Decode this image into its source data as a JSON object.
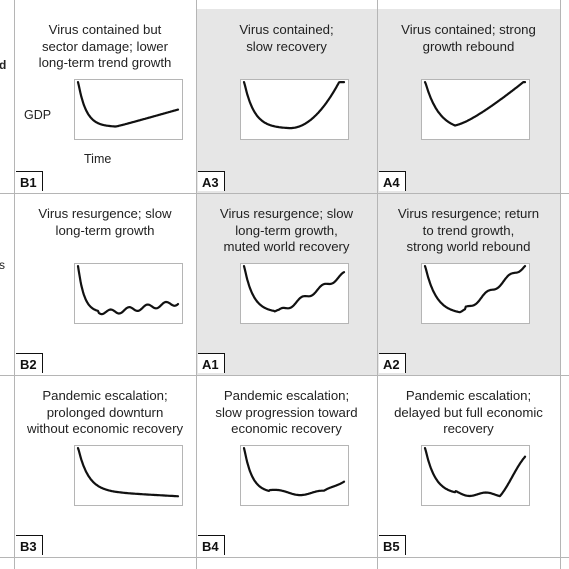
{
  "axes": {
    "y_label": "GDP",
    "x_label": "Time"
  },
  "cells": [
    {
      "id": "B1",
      "caption": "Virus contained but\nsector damage; lower\nlong-term trend growth",
      "shaded": false,
      "curve": "lower-trend"
    },
    {
      "id": "A3",
      "caption": "Virus contained;\nslow recovery",
      "shaded": true,
      "curve": "slow-u"
    },
    {
      "id": "A4",
      "caption": "Virus contained; strong\ngrowth rebound",
      "shaded": true,
      "curve": "v-rebound"
    },
    {
      "id": "B2",
      "caption": "Virus resurgence; slow\nlong-term growth",
      "shaded": false,
      "curve": "wavy-flat"
    },
    {
      "id": "A1",
      "caption": "Virus resurgence; slow\nlong-term growth,\nmuted world recovery",
      "shaded": true,
      "curve": "wavy-rising"
    },
    {
      "id": "A2",
      "caption": "Virus resurgence; return\nto trend growth,\nstrong world rebound",
      "shaded": true,
      "curve": "wavy-strong"
    },
    {
      "id": "B3",
      "caption": "Pandemic escalation;\nprolonged downturn\nwithout economic recovery",
      "shaded": false,
      "curve": "l-shape"
    },
    {
      "id": "B4",
      "caption": "Pandemic escalation;\nslow progression toward\neconomic recovery",
      "shaded": false,
      "curve": "wobbly-slow"
    },
    {
      "id": "B5",
      "caption": "Pandemic escalation;\ndelayed but full economic\nrecovery",
      "shaded": false,
      "curve": "delayed-full"
    }
  ],
  "edge_marks": [
    "d",
    "s"
  ],
  "colors": {
    "shaded": "#e6e6e6",
    "line": "#111111",
    "grid": "#b5b5b5",
    "frame": "#b5b5b5"
  }
}
